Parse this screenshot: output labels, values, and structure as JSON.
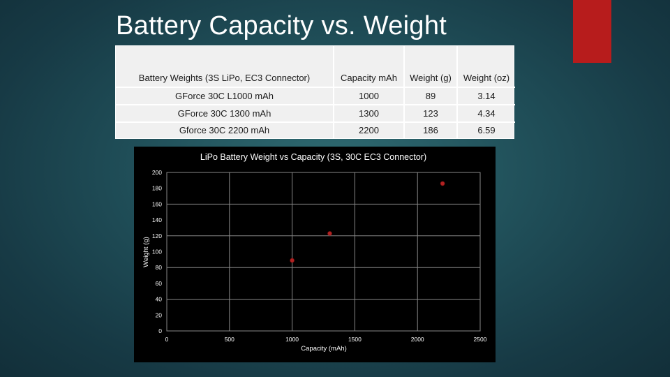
{
  "slide": {
    "title": "Battery Capacity vs. Weight",
    "accent_color": "#b71c1c"
  },
  "table": {
    "headers": [
      "Battery Weights (3S LiPo, EC3 Connector)",
      "Capacity mAh",
      "Weight (g)",
      "Weight (oz)"
    ],
    "rows": [
      [
        "GForce 30C L1000 mAh",
        "1000",
        "89",
        "3.14"
      ],
      [
        "GForce 30C 1300 mAh",
        "1300",
        "123",
        "4.34"
      ],
      [
        "Gforce 30C 2200 mAh",
        "2200",
        "186",
        "6.59"
      ]
    ]
  },
  "chart_data": {
    "type": "scatter",
    "title": "LiPo Battery Weight vs Capacity (3S, 30C EC3 Connector)",
    "xlabel": "Capacity (mAh)",
    "ylabel": "Weight (g)",
    "xlim": [
      0,
      2500
    ],
    "ylim": [
      0,
      200
    ],
    "x_ticks": [
      "0",
      "500",
      "1000",
      "1500",
      "2000",
      "2500"
    ],
    "y_ticks": [
      "0",
      "20",
      "40",
      "60",
      "80",
      "100",
      "120",
      "140",
      "160",
      "180",
      "200"
    ],
    "grid": true,
    "marker_color": "#b22222",
    "series": [
      {
        "name": "Weight (g)",
        "x": [
          1000,
          1300,
          2200
        ],
        "y": [
          89,
          123,
          186
        ]
      }
    ]
  }
}
